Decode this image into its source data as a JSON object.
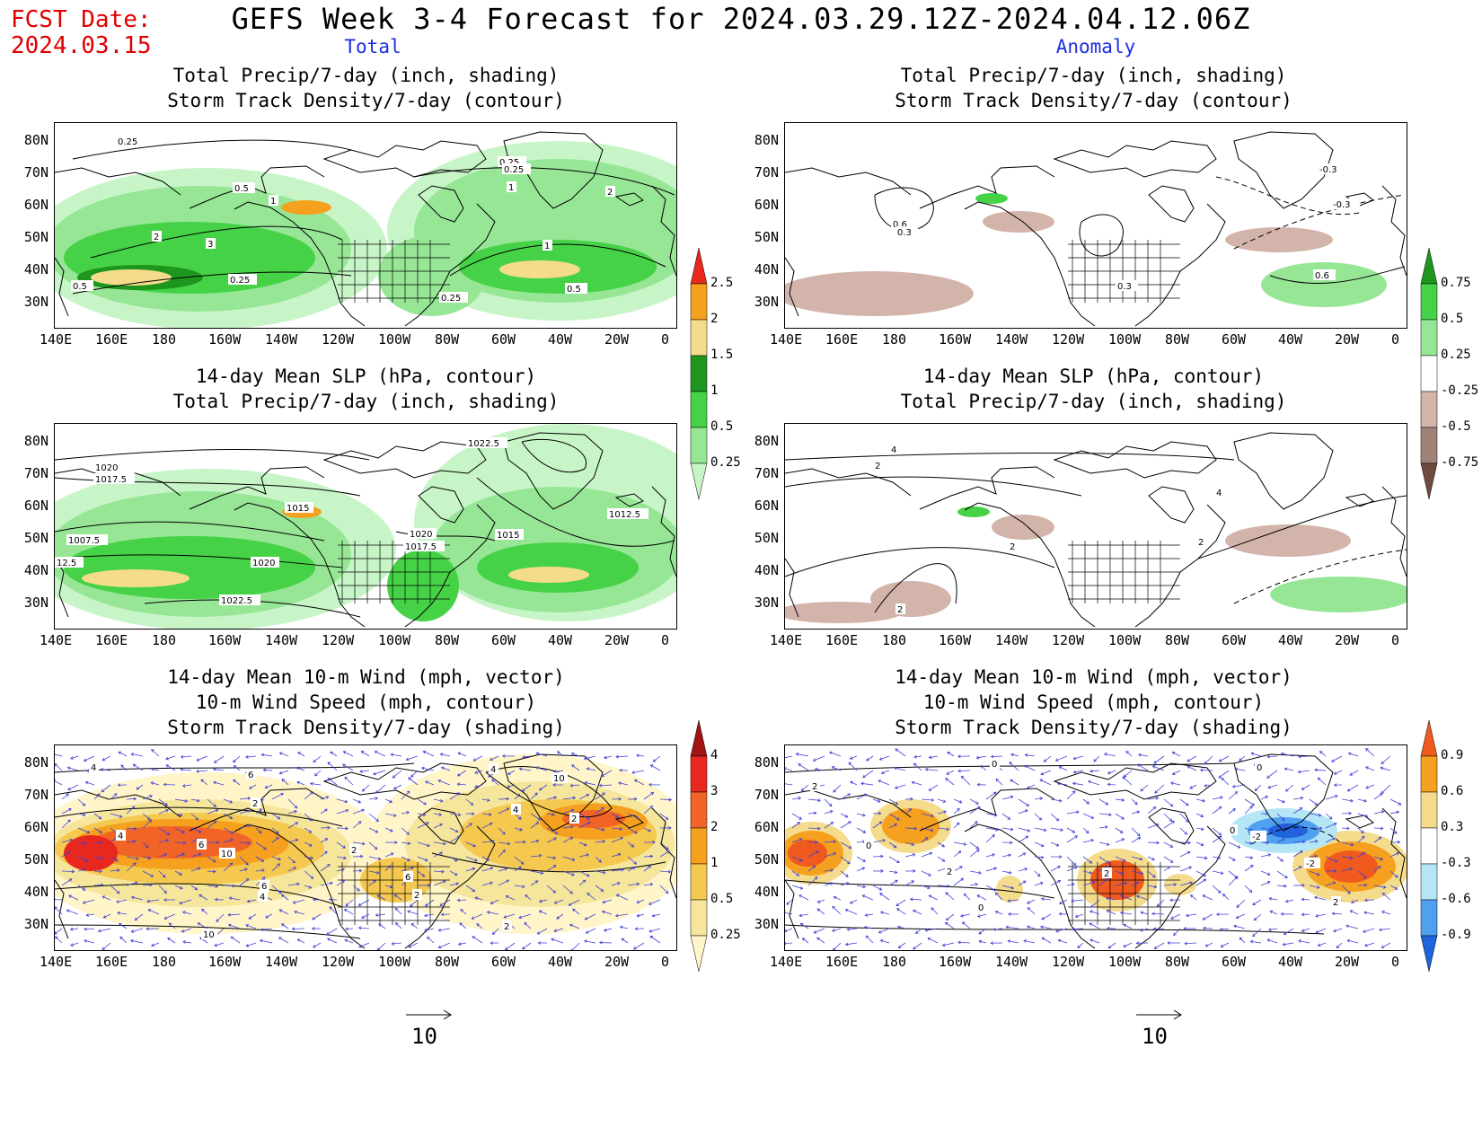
{
  "header": {
    "fcst_label": "FCST Date:",
    "fcst_date": "2024.03.15",
    "title": "GEFS Week 3-4 Forecast for 2024.03.29.12Z-2024.04.12.06Z",
    "col_total": "Total",
    "col_anomaly": "Anomaly"
  },
  "axes": {
    "lon_ticks": [
      "140E",
      "160E",
      "180",
      "160W",
      "140W",
      "120W",
      "100W",
      "80W",
      "60W",
      "40W",
      "20W",
      "0"
    ],
    "lat_ticks": [
      "80N",
      "70N",
      "60N",
      "50N",
      "40N",
      "30N"
    ]
  },
  "panels": {
    "p1": {
      "t1": "Total Precip/7-day (inch, shading)",
      "t2": "Storm Track Density/7-day (contour)"
    },
    "p2": {
      "t1": "Total Precip/7-day (inch, shading)",
      "t2": "Storm Track Density/7-day (contour)"
    },
    "p3": {
      "t1": "14-day Mean SLP (hPa, contour)",
      "t2": "Total Precip/7-day (inch, shading)"
    },
    "p4": {
      "t1": "14-day Mean SLP (hPa, contour)",
      "t2": "Total Precip/7-day (inch, shading)"
    },
    "p5": {
      "t1": "14-day Mean 10-m Wind (mph, vector)",
      "t2": "10-m Wind Speed (mph, contour)",
      "t3": "Storm Track Density/7-day (shading)"
    },
    "p6": {
      "t1": "14-day Mean 10-m Wind (mph, vector)",
      "t2": "10-m Wind Speed (mph, contour)",
      "t3": "Storm Track Density/7-day (shading)"
    }
  },
  "contour_labels": {
    "p1": [
      "0.25",
      "0.5",
      "1",
      "2",
      "3",
      "0.5",
      "0.25",
      "0.25",
      "0.25",
      "1",
      "0.5",
      "2",
      "1",
      "0.25"
    ],
    "p2": [
      "0.6",
      "0.3",
      "0.3",
      "-0.3",
      "-0.3",
      "0.6"
    ],
    "p3": [
      "1020",
      "1017.5",
      "1007.5",
      "12.5",
      "1015",
      "1020",
      "1017.5",
      "1020",
      "1022.5",
      "1022.5",
      "1015",
      "1012.5"
    ],
    "p4": [
      "4",
      "2",
      "2",
      "4",
      "2",
      "2"
    ],
    "p5": [
      "4",
      "6",
      "4",
      "6",
      "10",
      "6",
      "4",
      "2",
      "10",
      "2",
      "4",
      "2",
      "4",
      "2",
      "10",
      "6",
      "2"
    ],
    "p6": [
      "0",
      "2",
      "0",
      "2",
      "0",
      "-2",
      "0",
      "2",
      "2",
      "0",
      "-2"
    ]
  },
  "colorbars": {
    "precip_total": {
      "labels": [
        "2.5",
        "2",
        "1.5",
        "1",
        "0.5",
        "0.25"
      ],
      "colors": [
        "#e8281e",
        "#f5a01e",
        "#f5dc8c",
        "#1e961e",
        "#46d246",
        "#96e696",
        "#c8f5c8"
      ]
    },
    "precip_anom": {
      "labels": [
        "0.75",
        "0.5",
        "0.25",
        "-0.25",
        "-0.5",
        "-0.75"
      ],
      "colors": [
        "#1e961e",
        "#46d246",
        "#96e696",
        "#ffffff",
        "#d2b4aa",
        "#a08278",
        "#6e4b41"
      ]
    },
    "storm_total": {
      "labels": [
        "4",
        "3",
        "2",
        "1",
        "0.5",
        "0.25"
      ],
      "colors": [
        "#a01414",
        "#e8281e",
        "#f06428",
        "#f5a01e",
        "#f5c850",
        "#f5e69b",
        "#fff5c8"
      ]
    },
    "storm_anom": {
      "labels": [
        "0.9",
        "0.6",
        "0.3",
        "-0.3",
        "-0.6",
        "-0.9"
      ],
      "colors": [
        "#f05a1e",
        "#f5a01e",
        "#f5dc8c",
        "#ffffff",
        "#b4e6f5",
        "#50a0f0",
        "#1e64dc"
      ]
    }
  },
  "vector_reference": {
    "value": "10"
  }
}
